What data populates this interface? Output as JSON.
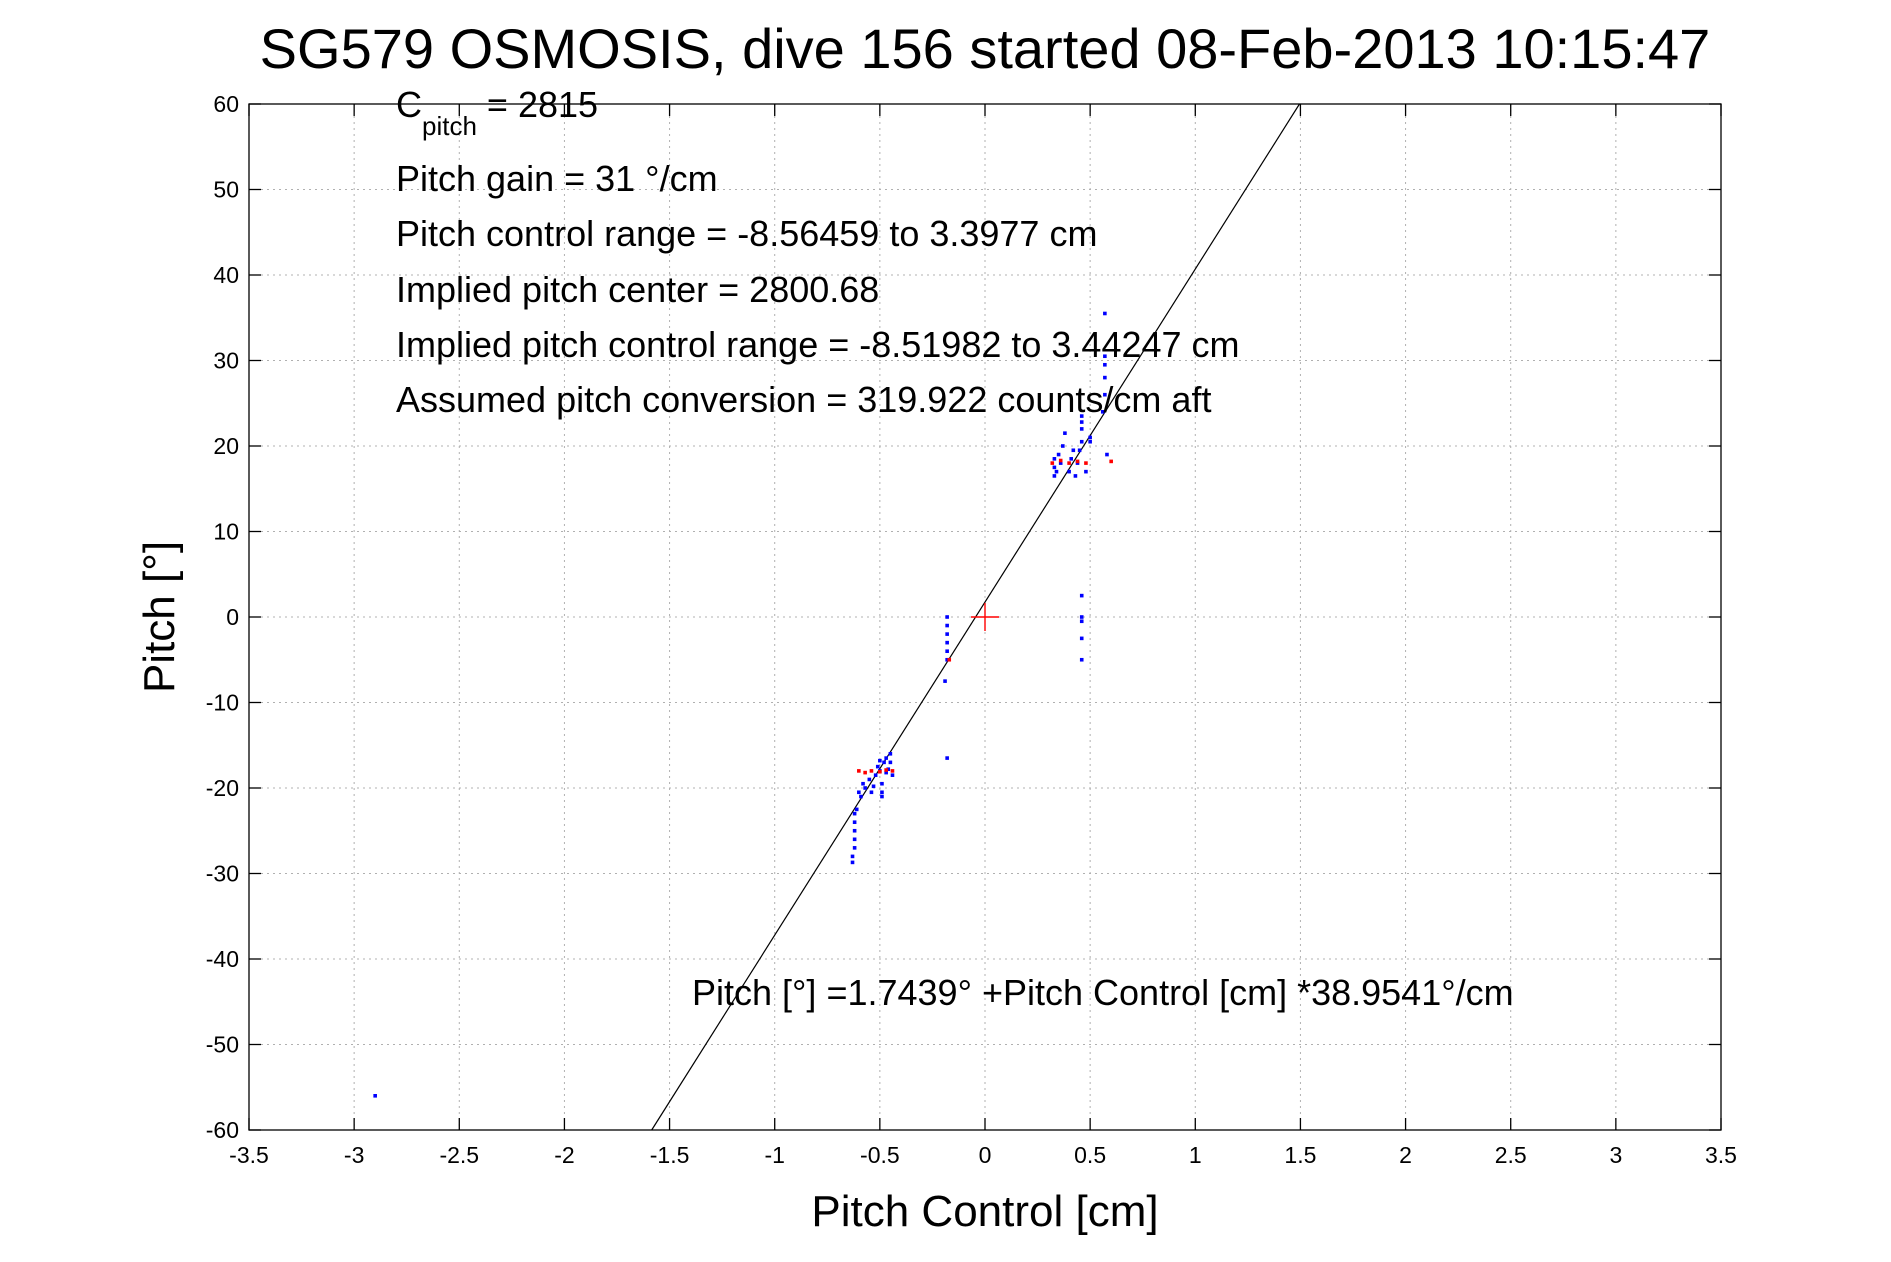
{
  "chart_data": {
    "type": "scatter",
    "title": "SG579 OSMOSIS, dive 156 started 08-Feb-2013 10:15:47",
    "xlabel": "Pitch Control [cm]",
    "ylabel": "Pitch [°]",
    "xlim": [
      -3.5,
      3.5
    ],
    "ylim": [
      -60,
      60
    ],
    "xticks": [
      -3.5,
      -3,
      -2.5,
      -2,
      -1.5,
      -1,
      -0.5,
      0,
      0.5,
      1,
      1.5,
      2,
      2.5,
      3,
      3.5
    ],
    "yticks": [
      -60,
      -50,
      -40,
      -30,
      -20,
      -10,
      0,
      10,
      20,
      30,
      40,
      50,
      60
    ],
    "xtick_labels": [
      "-3.5",
      "-3",
      "-2.5",
      "-2",
      "-1.5",
      "-1",
      "-0.5",
      "0",
      "0.5",
      "1",
      "1.5",
      "2",
      "2.5",
      "3",
      "3.5"
    ],
    "ytick_labels": [
      "-60",
      "-50",
      "-40",
      "-30",
      "-20",
      "-10",
      "0",
      "10",
      "20",
      "30",
      "40",
      "50",
      "60"
    ],
    "grid": true,
    "annotations": {
      "cpitch_main": "C",
      "cpitch_sub": "pitch",
      "cpitch_value": " = 2815",
      "pitch_gain": "Pitch gain = 31 °/cm",
      "control_range": "Pitch control range = -8.56459 to 3.3977 cm",
      "implied_center": "Implied pitch center = 2800.68",
      "implied_range": "Implied pitch control range = -8.51982 to 3.44247 cm",
      "conversion": "Assumed pitch conversion = 319.922 counts/cm aft",
      "fit_equation": "Pitch [°] =1.7439° +Pitch Control [cm] *38.9541°/cm"
    },
    "fit_line": {
      "intercept": 1.7439,
      "slope": 38.9541
    },
    "center_marker": {
      "x": 0,
      "y": 0,
      "color": "#ff0000"
    },
    "series": [
      {
        "color": "#0000ff",
        "points": [
          [
            -2.9,
            -56
          ],
          [
            -0.62,
            -23
          ],
          [
            -0.62,
            -24
          ],
          [
            -0.62,
            -25
          ],
          [
            -0.62,
            -26
          ],
          [
            -0.62,
            -27
          ],
          [
            -0.63,
            -28
          ],
          [
            -0.63,
            -28.7
          ],
          [
            -0.61,
            -22.5
          ],
          [
            -0.6,
            -20.5
          ],
          [
            -0.59,
            -21
          ],
          [
            -0.58,
            -19.5
          ],
          [
            -0.57,
            -20
          ],
          [
            -0.55,
            -19
          ],
          [
            -0.54,
            -20.5
          ],
          [
            -0.53,
            -19.8
          ],
          [
            -0.52,
            -18.5
          ],
          [
            -0.51,
            -17.5
          ],
          [
            -0.5,
            -16.8
          ],
          [
            -0.5,
            -18
          ],
          [
            -0.49,
            -19.5
          ],
          [
            -0.49,
            -20.5
          ],
          [
            -0.48,
            -17
          ],
          [
            -0.47,
            -16.5
          ],
          [
            -0.47,
            -18.2
          ],
          [
            -0.46,
            -17.8
          ],
          [
            -0.45,
            -16
          ],
          [
            -0.45,
            -17
          ],
          [
            -0.44,
            -18.5
          ],
          [
            -0.49,
            -21
          ],
          [
            -0.18,
            0
          ],
          [
            -0.18,
            -1
          ],
          [
            -0.18,
            -2
          ],
          [
            -0.18,
            -3
          ],
          [
            -0.18,
            -4
          ],
          [
            -0.18,
            -5
          ],
          [
            -0.19,
            -7.5
          ],
          [
            -0.18,
            -16.5
          ],
          [
            0.33,
            16.5
          ],
          [
            0.33,
            17.5
          ],
          [
            0.33,
            18.5
          ],
          [
            0.34,
            17
          ],
          [
            0.35,
            19
          ],
          [
            0.36,
            18
          ],
          [
            0.37,
            20
          ],
          [
            0.38,
            21.5
          ],
          [
            0.4,
            17
          ],
          [
            0.41,
            18.5
          ],
          [
            0.42,
            19.5
          ],
          [
            0.43,
            16.5
          ],
          [
            0.44,
            18
          ],
          [
            0.45,
            19.5
          ],
          [
            0.46,
            20.5
          ],
          [
            0.46,
            22
          ],
          [
            0.46,
            22.8
          ],
          [
            0.46,
            23.5
          ],
          [
            0.48,
            17
          ],
          [
            0.5,
            20.5
          ],
          [
            0.5,
            21
          ],
          [
            0.56,
            24
          ],
          [
            0.57,
            26
          ],
          [
            0.57,
            28
          ],
          [
            0.57,
            29.5
          ],
          [
            0.57,
            30.5
          ],
          [
            0.57,
            35.5
          ],
          [
            0.58,
            19
          ],
          [
            0.46,
            2.5
          ],
          [
            0.46,
            0
          ],
          [
            0.46,
            -0.5
          ],
          [
            0.46,
            -2.5
          ],
          [
            0.46,
            -5
          ]
        ]
      },
      {
        "color": "#ff0000",
        "points": [
          [
            -0.6,
            -18
          ],
          [
            -0.57,
            -18.2
          ],
          [
            -0.54,
            -18
          ],
          [
            -0.5,
            -18.1
          ],
          [
            -0.47,
            -17.9
          ],
          [
            -0.44,
            -18
          ],
          [
            -0.17,
            -5
          ],
          [
            0.32,
            18
          ],
          [
            0.36,
            18.3
          ],
          [
            0.4,
            18
          ],
          [
            0.44,
            18.2
          ],
          [
            0.48,
            18
          ],
          [
            0.6,
            18.2
          ]
        ]
      }
    ]
  }
}
